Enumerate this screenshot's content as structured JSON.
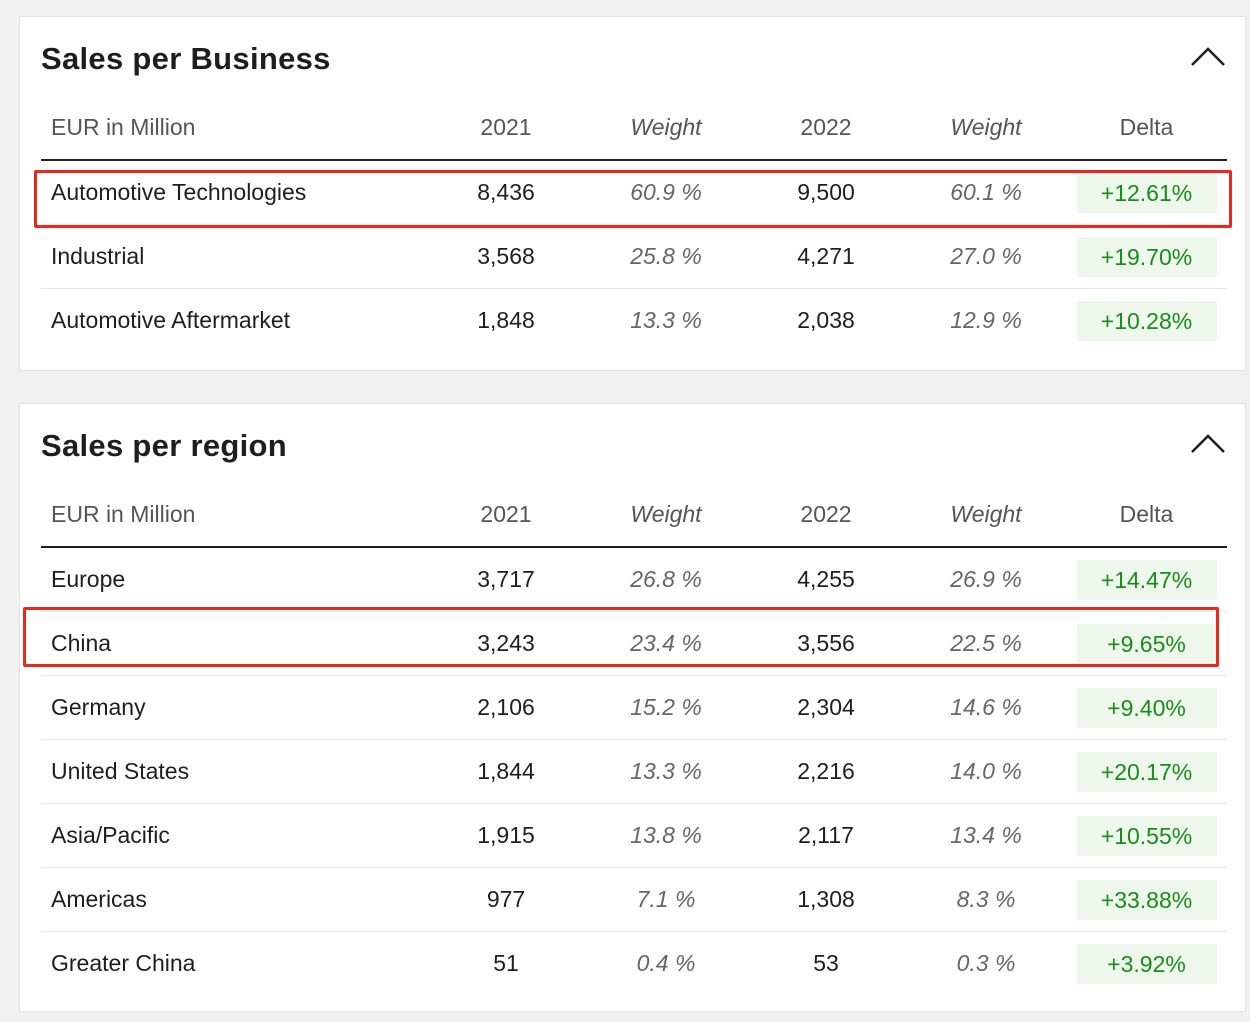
{
  "business": {
    "title": "Sales per Business",
    "columns": [
      "EUR in Million",
      "2021",
      "Weight",
      "2022",
      "Weight",
      "Delta"
    ],
    "rows": [
      {
        "name": "Automotive Technologies",
        "v2021": "8,436",
        "w2021": "60.9 %",
        "v2022": "9,500",
        "w2022": "60.1 %",
        "delta": "+12.61%"
      },
      {
        "name": "Industrial",
        "v2021": "3,568",
        "w2021": "25.8 %",
        "v2022": "4,271",
        "w2022": "27.0 %",
        "delta": "+19.70%"
      },
      {
        "name": "Automotive Aftermarket",
        "v2021": "1,848",
        "w2021": "13.3 %",
        "v2022": "2,038",
        "w2022": "12.9 %",
        "delta": "+10.28%"
      }
    ]
  },
  "region": {
    "title": "Sales per region",
    "columns": [
      "EUR in Million",
      "2021",
      "Weight",
      "2022",
      "Weight",
      "Delta"
    ],
    "rows": [
      {
        "name": "Europe",
        "v2021": "3,717",
        "w2021": "26.8 %",
        "v2022": "4,255",
        "w2022": "26.9 %",
        "delta": "+14.47%"
      },
      {
        "name": "China",
        "v2021": "3,243",
        "w2021": "23.4 %",
        "v2022": "3,556",
        "w2022": "22.5 %",
        "delta": "+9.65%"
      },
      {
        "name": "Germany",
        "v2021": "2,106",
        "w2021": "15.2 %",
        "v2022": "2,304",
        "w2022": "14.6 %",
        "delta": "+9.40%"
      },
      {
        "name": "United States",
        "v2021": "1,844",
        "w2021": "13.3 %",
        "v2022": "2,216",
        "w2022": "14.0 %",
        "delta": "+20.17%"
      },
      {
        "name": "Asia/Pacific",
        "v2021": "1,915",
        "w2021": "13.8 %",
        "v2022": "2,117",
        "w2022": "13.4 %",
        "delta": "+10.55%"
      },
      {
        "name": "Americas",
        "v2021": "977",
        "w2021": "7.1 %",
        "v2022": "1,308",
        "w2022": "8.3 %",
        "delta": "+33.88%"
      },
      {
        "name": "Greater China",
        "v2021": "51",
        "w2021": "0.4 %",
        "v2022": "53",
        "w2022": "0.3 %",
        "delta": "+3.92%"
      }
    ]
  },
  "icons": {
    "collapse": "chevron-up-icon"
  },
  "colors": {
    "delta_text": "#1a8c1a",
    "delta_bg": "#eef7ec",
    "highlight": "#e8291c"
  }
}
